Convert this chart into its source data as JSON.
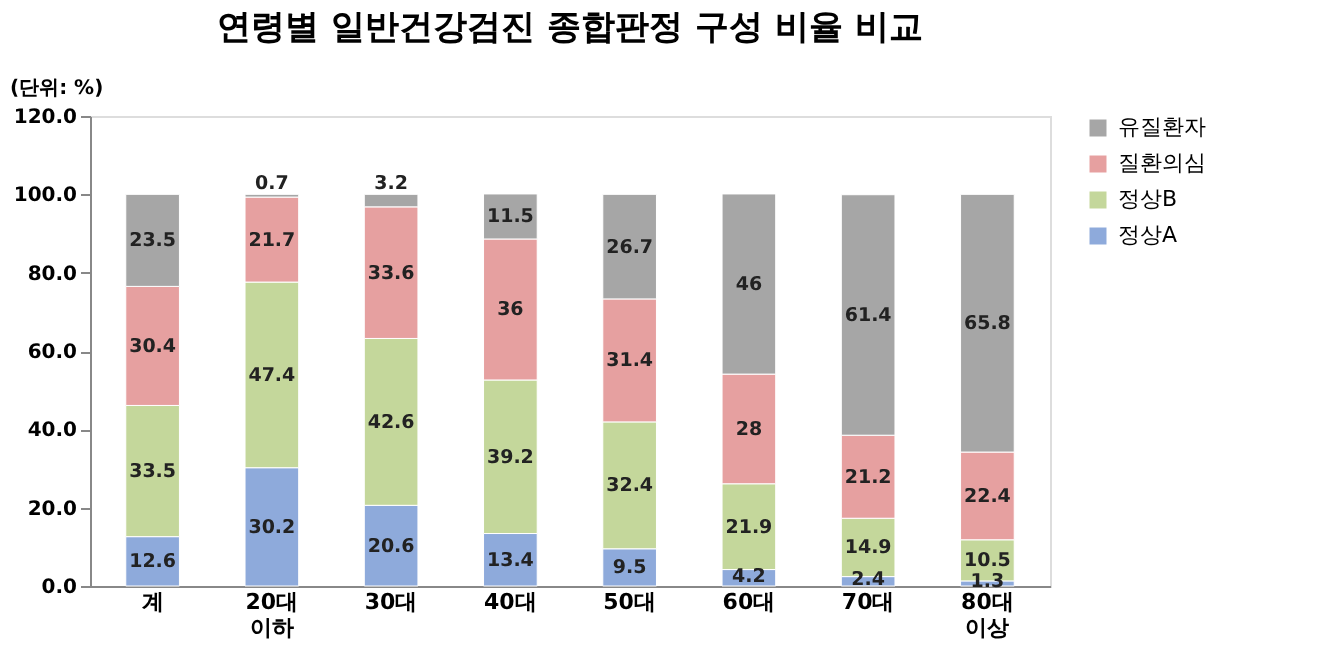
{
  "chart_data": {
    "type": "bar",
    "stacked": true,
    "title": "연령별 일반건강검진 종합판정 구성 비율 비교",
    "annotations": [
      "(단위: %)"
    ],
    "categories": [
      "계",
      "20대 이하",
      "30대",
      "40대",
      "50대",
      "60대",
      "70대",
      "80대 이상"
    ],
    "series": [
      {
        "name": "정상A",
        "color": "#8eaadb",
        "values": [
          12.6,
          30.2,
          20.6,
          13.4,
          9.5,
          4.2,
          2.4,
          1.3
        ]
      },
      {
        "name": "정상B",
        "color": "#c4d79b",
        "values": [
          33.5,
          47.4,
          42.6,
          39.2,
          32.4,
          21.9,
          14.9,
          10.5
        ]
      },
      {
        "name": "질환의심",
        "color": "#e6a0a0",
        "values": [
          30.4,
          21.7,
          33.6,
          36,
          31.4,
          28,
          21.2,
          22.4
        ]
      },
      {
        "name": "유질환자",
        "color": "#a6a6a6",
        "values": [
          23.5,
          0.7,
          3.2,
          11.5,
          26.7,
          46,
          61.4,
          65.8
        ]
      }
    ],
    "ylim": [
      0,
      120
    ],
    "yticks": [
      {
        "value": 0,
        "label": "0.0"
      },
      {
        "value": 20,
        "label": "20.0"
      },
      {
        "value": 40,
        "label": "40.0"
      },
      {
        "value": 60,
        "label": "60.0"
      },
      {
        "value": 80,
        "label": "80.0"
      },
      {
        "value": 100,
        "label": "100.0"
      },
      {
        "value": 120,
        "label": "120.0"
      }
    ],
    "grid": false,
    "legend": "right",
    "data_labels": true
  }
}
